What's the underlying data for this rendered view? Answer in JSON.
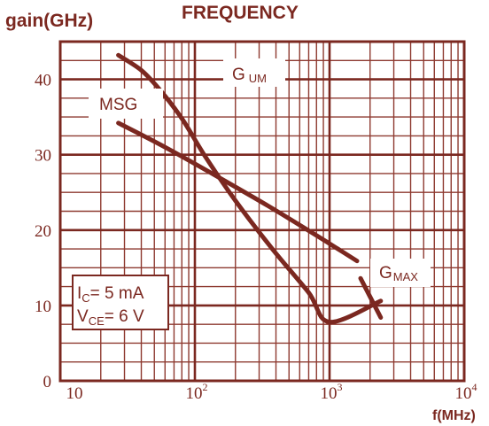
{
  "chart_data": {
    "type": "line",
    "title": "FREQUENCY",
    "ylabel": "gain(GHz)",
    "xlabel": "f(MHz)",
    "x_scale": "log",
    "xlim": [
      10,
      10000
    ],
    "ylim": [
      0,
      45
    ],
    "grid": true,
    "x_ticks": [
      {
        "value": 10,
        "label": "10",
        "exp": ""
      },
      {
        "value": 100,
        "label": "10",
        "exp": "2"
      },
      {
        "value": 1000,
        "label": "10",
        "exp": "3"
      },
      {
        "value": 10000,
        "label": "10",
        "exp": "4"
      }
    ],
    "y_ticks": [
      {
        "value": 0,
        "label": "0"
      },
      {
        "value": 10,
        "label": "10"
      },
      {
        "value": 20,
        "label": "20"
      },
      {
        "value": 30,
        "label": "30"
      },
      {
        "value": 40,
        "label": "40"
      }
    ],
    "series": [
      {
        "name": "G UM",
        "label_main": "G",
        "label_sub": "UM",
        "points": [
          [
            27,
            43.2
          ],
          [
            40,
            41.2
          ],
          [
            55,
            38.6
          ],
          [
            80,
            34.8
          ],
          [
            120,
            29.7
          ],
          [
            200,
            23.9
          ],
          [
            380,
            17.4
          ],
          [
            700,
            11.7
          ],
          [
            1000,
            7.8
          ],
          [
            2400,
            10.6
          ]
        ]
      },
      {
        "name": "MSG",
        "points": [
          [
            27,
            34.2
          ],
          [
            60,
            31.0
          ],
          [
            150,
            27.0
          ],
          [
            350,
            23.2
          ],
          [
            750,
            19.6
          ],
          [
            1000,
            18.2
          ],
          [
            1600,
            15.9
          ]
        ]
      },
      {
        "name": "G MAX",
        "label_main": "G",
        "label_sub": "MAX",
        "points": [
          [
            1700,
            13.6
          ],
          [
            2400,
            8.4
          ]
        ]
      }
    ],
    "annotation": {
      "line1_main": "I",
      "line1_sub": "C",
      "line1_rest": "= 5  mA",
      "line2_main": "V",
      "line2_sub": "CE",
      "line2_rest": "= 6 V"
    }
  },
  "colors": {
    "ink": "#7b2820",
    "grid": "#8e3a30",
    "background": "#ffffff"
  }
}
